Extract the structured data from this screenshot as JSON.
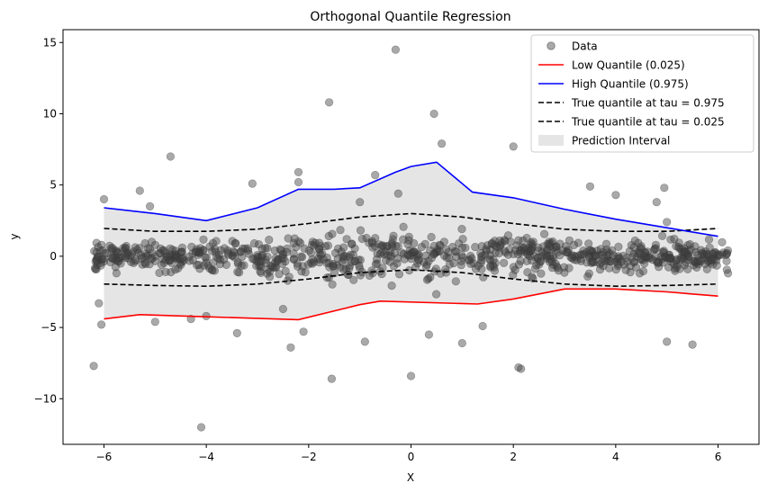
{
  "chart_data": {
    "type": "scatter",
    "title": "Orthogonal Quantile Regression",
    "xlabel": "X",
    "ylabel": "y",
    "xlim": [
      -6.8,
      6.8
    ],
    "ylim": [
      -13.2,
      15.9
    ],
    "xticks": [
      -6,
      -4,
      -2,
      0,
      2,
      4,
      6
    ],
    "yticks": [
      -10,
      -5,
      0,
      5,
      10,
      15
    ],
    "legend_placement": "upper-right",
    "grid": false,
    "colors": {
      "data": "#808080",
      "low": "#ff0000",
      "high": "#0000ff",
      "true": "#000000",
      "band": "#d3d3d3"
    },
    "legend": [
      {
        "label": "Data",
        "kind": "marker"
      },
      {
        "label": "Low Quantile (0.025)",
        "kind": "line-low"
      },
      {
        "label": "High Quantile (0.975)",
        "kind": "line-high"
      },
      {
        "label": "True quantile at tau = 0.975",
        "kind": "dashed"
      },
      {
        "label": "True quantile at tau = 0.025",
        "kind": "dashed"
      },
      {
        "label": "Prediction Interval",
        "kind": "band"
      }
    ],
    "outliers": [
      [
        -6.2,
        -7.7
      ],
      [
        -6.1,
        -3.3
      ],
      [
        -6.05,
        -4.8
      ],
      [
        -6.0,
        4.0
      ],
      [
        -5.3,
        4.6
      ],
      [
        -5.1,
        3.5
      ],
      [
        -4.7,
        7.0
      ],
      [
        -4.1,
        -12.0
      ],
      [
        -4.0,
        -4.2
      ],
      [
        -3.4,
        -5.4
      ],
      [
        -3.1,
        5.1
      ],
      [
        -2.35,
        -6.4
      ],
      [
        -2.2,
        5.9
      ],
      [
        -2.2,
        5.2
      ],
      [
        -2.1,
        -5.3
      ],
      [
        -1.55,
        -8.6
      ],
      [
        -1.6,
        10.8
      ],
      [
        -1.0,
        3.8
      ],
      [
        -0.9,
        -6.0
      ],
      [
        -0.7,
        5.7
      ],
      [
        -0.3,
        14.5
      ],
      [
        -0.25,
        4.4
      ],
      [
        0.0,
        -8.4
      ],
      [
        0.35,
        -5.5
      ],
      [
        0.45,
        10.0
      ],
      [
        0.6,
        7.9
      ],
      [
        1.0,
        -6.1
      ],
      [
        2.0,
        7.7
      ],
      [
        2.1,
        -7.8
      ],
      [
        2.15,
        -7.9
      ],
      [
        3.5,
        4.9
      ],
      [
        4.0,
        4.3
      ],
      [
        4.8,
        3.8
      ],
      [
        4.95,
        4.8
      ],
      [
        5.0,
        -6.0
      ],
      [
        5.5,
        -6.2
      ],
      [
        5.0,
        2.4
      ],
      [
        -2.5,
        -3.7
      ],
      [
        1.4,
        -4.9
      ],
      [
        -5.0,
        -4.6
      ],
      [
        -4.3,
        -4.4
      ]
    ],
    "bulk": {
      "n": 860,
      "x_range": [
        -6.2,
        6.2
      ],
      "description": "dense noisy cloud around y approximately 0"
    },
    "low_quantile": {
      "x": [
        -6,
        -5.3,
        -4,
        -2.2,
        -1,
        -0.6,
        1.3,
        2.0,
        3.0,
        4.0,
        5.0,
        6.0
      ],
      "y": [
        -4.4,
        -4.1,
        -4.25,
        -4.45,
        -3.4,
        -3.15,
        -3.35,
        -3.0,
        -2.3,
        -2.3,
        -2.5,
        -2.8
      ]
    },
    "high_quantile": {
      "x": [
        -6,
        -5,
        -4,
        -3,
        -2.2,
        -1.5,
        -1,
        -0.3,
        0.0,
        0.5,
        1.2,
        2.0,
        3.0,
        4.0,
        5.0,
        6.0
      ],
      "y": [
        3.4,
        3.0,
        2.5,
        3.4,
        4.7,
        4.7,
        4.8,
        5.9,
        6.3,
        6.6,
        4.5,
        4.1,
        3.3,
        2.6,
        2.0,
        1.4
      ]
    },
    "true_high": {
      "x": [
        -6,
        -5,
        -4,
        -3,
        -2,
        -1,
        0,
        1,
        2,
        3,
        4,
        5,
        6
      ],
      "y": [
        1.95,
        1.75,
        1.75,
        1.9,
        2.3,
        2.75,
        3.0,
        2.75,
        2.3,
        1.9,
        1.75,
        1.75,
        1.95
      ]
    },
    "true_low": {
      "x": [
        -6,
        -5,
        -4,
        -3,
        -2,
        -1,
        0,
        1,
        2,
        3,
        4,
        5,
        6
      ],
      "y": [
        -1.95,
        -2.05,
        -2.1,
        -1.95,
        -1.6,
        -1.15,
        -0.95,
        -1.15,
        -1.6,
        -1.95,
        -2.1,
        -2.05,
        -1.95
      ]
    }
  }
}
